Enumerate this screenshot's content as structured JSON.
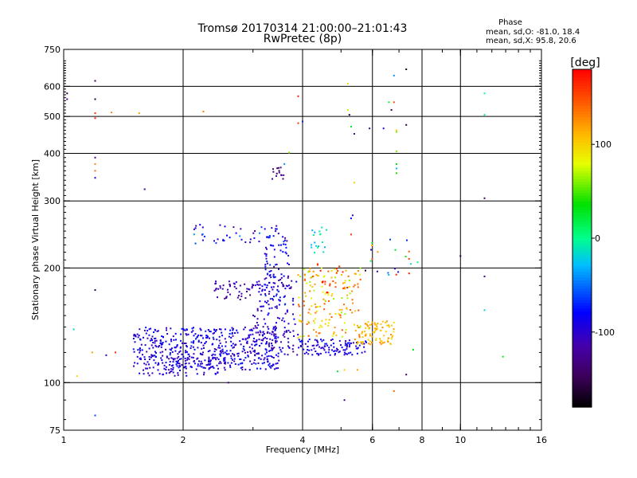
{
  "chart_data": {
    "type": "scatter",
    "title": "Tromsø 20170314 21:00:00–21:01:43",
    "subtitle": "RwPretec (8p)",
    "stats": {
      "heading": "Phase",
      "line1": "mean, sd,O: -81.0, 18.4",
      "line2": "mean, sd,X:  95.8, 20.6"
    },
    "xlabel": "Frequency [MHz]",
    "ylabel": "Stationary phase Virtual Height [km]",
    "xscale": "log",
    "yscale": "log",
    "xlim": [
      1,
      16
    ],
    "ylim": [
      75,
      750
    ],
    "xticks": [
      1,
      2,
      4,
      6,
      8,
      10,
      16
    ],
    "xtick_labels": [
      "1",
      "2",
      "4",
      "6",
      "8",
      "10",
      "16"
    ],
    "xgrid": [
      2,
      4,
      6,
      8,
      10
    ],
    "xminor": [
      3,
      5,
      7,
      9
    ],
    "yticks": [
      75,
      100,
      200,
      300,
      400,
      500,
      600,
      750
    ],
    "ytick_labels": [
      "75",
      "100",
      "200",
      "300",
      "400",
      "500",
      "600",
      "750"
    ],
    "ygrid": [
      100,
      200,
      300,
      400,
      500,
      600
    ],
    "grid": true,
    "colorbar": {
      "label": "[deg]",
      "range": [
        -180,
        180
      ],
      "ticks": [
        100,
        0,
        -100
      ],
      "tick_labels": [
        "100",
        "0",
        "-100"
      ]
    },
    "clusters": [
      {
        "xrange": [
          1.5,
          3.5
        ],
        "yrange": [
          108,
          140
        ],
        "phase": [
          -115,
          -70
        ],
        "count": 520
      },
      {
        "xrange": [
          1.55,
          2.5
        ],
        "yrange": [
          104,
          116
        ],
        "phase": [
          -110,
          -80
        ],
        "count": 70
      },
      {
        "xrange": [
          3.0,
          3.9
        ],
        "yrange": [
          118,
          190
        ],
        "phase": [
          -125,
          -80
        ],
        "count": 150
      },
      {
        "xrange": [
          3.2,
          3.7
        ],
        "yrange": [
          160,
          260
        ],
        "phase": [
          -120,
          -60
        ],
        "count": 90
      },
      {
        "xrange": [
          2.4,
          3.0
        ],
        "yrange": [
          165,
          185
        ],
        "phase": [
          -130,
          -100
        ],
        "count": 45
      },
      {
        "xrange": [
          2.0,
          3.2
        ],
        "yrange": [
          230,
          260
        ],
        "phase": [
          -120,
          -40
        ],
        "count": 35
      },
      {
        "xrange": [
          3.3,
          3.6
        ],
        "yrange": [
          340,
          370
        ],
        "phase": [
          -160,
          -110
        ],
        "count": 14
      },
      {
        "xrange": [
          3.9,
          5.8
        ],
        "yrange": [
          118,
          130
        ],
        "phase": [
          -110,
          -70
        ],
        "count": 110
      },
      {
        "xrange": [
          3.9,
          5.6
        ],
        "yrange": [
          130,
          200
        ],
        "phase": [
          60,
          150
        ],
        "count": 160
      },
      {
        "xrange": [
          5.4,
          6.8
        ],
        "yrange": [
          126,
          145
        ],
        "phase": [
          90,
          130
        ],
        "count": 90
      },
      {
        "xrange": [
          4.2,
          4.6
        ],
        "yrange": [
          215,
          260
        ],
        "phase": [
          -40,
          0
        ],
        "count": 18
      },
      {
        "xrange": [
          4.2,
          5.2
        ],
        "yrange": [
          170,
          205
        ],
        "phase": [
          140,
          180
        ],
        "count": 20
      },
      {
        "xrange": [
          5.6,
          7.5
        ],
        "yrange": [
          190,
          240
        ],
        "phase": [
          -180,
          180
        ],
        "count": 20
      }
    ],
    "isolated_points": [
      [
        1.02,
        575,
        -150
      ],
      [
        1.02,
        555,
        -120
      ],
      [
        1.2,
        620,
        -150
      ],
      [
        1.2,
        555,
        -160
      ],
      [
        1.2,
        510,
        160
      ],
      [
        1.2,
        495,
        170
      ],
      [
        1.32,
        512,
        130
      ],
      [
        1.55,
        510,
        120
      ],
      [
        2.25,
        515,
        130
      ],
      [
        1.2,
        390,
        -120
      ],
      [
        1.2,
        375,
        130
      ],
      [
        1.2,
        360,
        140
      ],
      [
        1.2,
        345,
        -90
      ],
      [
        1.6,
        322,
        -120
      ],
      [
        1.2,
        175,
        -160
      ],
      [
        1.06,
        138,
        -20
      ],
      [
        1.18,
        120,
        120
      ],
      [
        1.28,
        118,
        -100
      ],
      [
        1.35,
        120,
        170
      ],
      [
        1.08,
        104,
        100
      ],
      [
        1.2,
        82,
        -60
      ],
      [
        2.6,
        100,
        -140
      ],
      [
        3.9,
        565,
        170
      ],
      [
        3.9,
        480,
        160
      ],
      [
        4.0,
        485,
        -70
      ],
      [
        5.2,
        610,
        100
      ],
      [
        5.2,
        520,
        70
      ],
      [
        5.25,
        505,
        -150
      ],
      [
        5.3,
        470,
        30
      ],
      [
        5.4,
        450,
        -120
      ],
      [
        5.9,
        465,
        -120
      ],
      [
        6.4,
        465,
        -100
      ],
      [
        6.8,
        640,
        -40
      ],
      [
        7.3,
        665,
        -170
      ],
      [
        6.6,
        545,
        20
      ],
      [
        6.8,
        545,
        150
      ],
      [
        6.7,
        520,
        -140
      ],
      [
        6.9,
        460,
        100
      ],
      [
        6.9,
        455,
        60
      ],
      [
        7.3,
        475,
        -160
      ],
      [
        6.9,
        405,
        60
      ],
      [
        6.9,
        375,
        30
      ],
      [
        6.9,
        365,
        -30
      ],
      [
        6.9,
        355,
        40
      ],
      [
        5.4,
        335,
        100
      ],
      [
        3.7,
        402,
        60
      ],
      [
        3.6,
        375,
        -40
      ],
      [
        11.5,
        575,
        0
      ],
      [
        11.5,
        505,
        -10
      ],
      [
        11.5,
        305,
        -150
      ],
      [
        11.5,
        190,
        -130
      ],
      [
        11.5,
        155,
        -20
      ],
      [
        10.0,
        215,
        -160
      ],
      [
        12.8,
        117,
        30
      ],
      [
        7.6,
        122,
        30
      ],
      [
        7.3,
        105,
        -150
      ],
      [
        6.8,
        95,
        140
      ],
      [
        5.1,
        90,
        -120
      ],
      [
        4.9,
        107,
        30
      ],
      [
        5.1,
        108,
        100
      ],
      [
        5.5,
        108,
        120
      ],
      [
        7.8,
        207,
        0
      ],
      [
        7.5,
        205,
        -10
      ],
      [
        5.3,
        245,
        160
      ],
      [
        5.3,
        270,
        -80
      ],
      [
        5.35,
        275,
        -100
      ]
    ]
  }
}
